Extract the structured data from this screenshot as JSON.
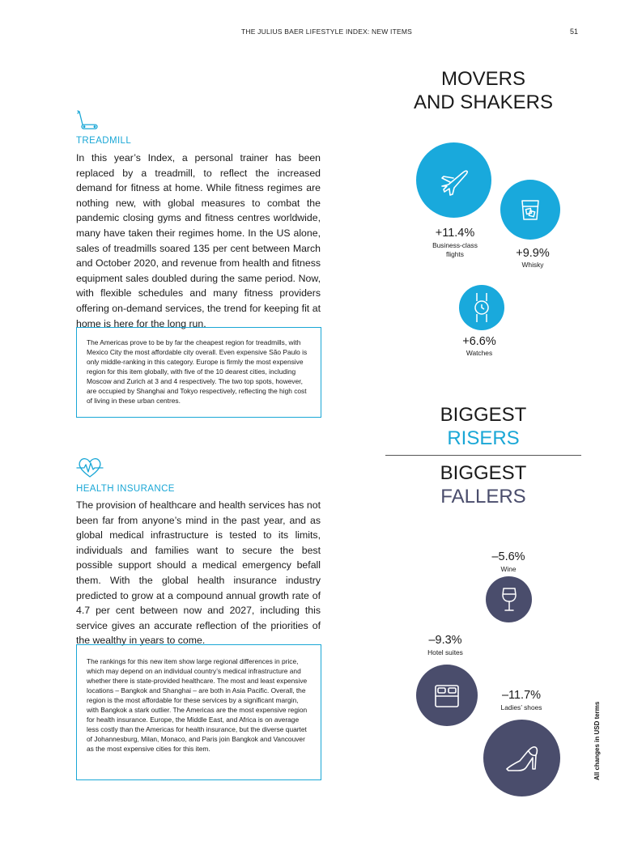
{
  "header": {
    "running_title": "THE JULIUS BAER LIFESTYLE INDEX: NEW ITEMS",
    "page_number": "51"
  },
  "treadmill": {
    "icon": "treadmill-icon",
    "title": "TREADMILL",
    "body": "In this year’s Index, a personal trainer has been replaced by a treadmill, to reflect the increased demand for fitness at home. While fitness regimes are nothing new, with global measures to combat the pandemic closing gyms and fitness centres worldwide, many have taken their regimes home. In the US alone, sales of treadmills soared 135 per cent between March and October 2020, and revenue from health and fitness equipment sales doubled during the same period. Now, with flexible schedules and many fitness providers offering on-demand services, the trend for keeping fit at home is here for the long run.",
    "box": "The Americas prove to be by far the cheapest region for treadmills, with Mexico City the most affordable city overall. Even expensive São Paulo is only middle-ranking in this category. Europe is firmly the most expensive region for this item globally, with five of the 10 dearest cities, including Moscow and Zurich at 3 and 4 respectively. The two top spots, however, are occupied by Shanghai and Tokyo respectively, reflecting the high cost of living in these urban centres."
  },
  "health_insurance": {
    "icon": "heartbeat-icon",
    "title": "HEALTH INSURANCE",
    "body": "The provision of healthcare and health services has not been far from anyone’s mind in the past year, and as global medical infrastructure is tested to its limits, individuals and families want to secure the best possible support should a medical emergency befall them. With the global health insurance industry predicted to grow at a compound annual growth rate of 4.7 per cent between now and 2027, including this service gives an accurate reflection of the priorities of the wealthy in years to come.",
    "box": "The rankings for this new item show large regional differences in price, which may depend on an individual country’s medical infrastructure and whether there is state-provided healthcare. The most and least expensive locations – Bangkok and Shanghai – are both in Asia Pacific. Overall, the region is the most affordable for these services by a significant margin, with Bangkok a stark outlier. The Americas are the most expensive region for health insurance. Europe, the Middle East, and Africa is on average less costly than the Americas for health insurance, but the diverse quartet of Johannesburg, Milan, Monaco, and Paris join Bangkok and Vancouver as the most expensive cities for this item."
  },
  "movers": {
    "title_line1": "MOVERS",
    "title_line2": "AND SHAKERS"
  },
  "risers": {
    "heading_line1": "BIGGEST",
    "heading_line2": "RISERS",
    "items": [
      {
        "value": "+11.4%",
        "label_line1": "Business-class",
        "label_line2": "flights",
        "icon": "airplane-icon"
      },
      {
        "value": "+9.9%",
        "label_line1": "Whisky",
        "label_line2": "",
        "icon": "whisky-glass-icon"
      },
      {
        "value": "+6.6%",
        "label_line1": "Watches",
        "label_line2": "",
        "icon": "watch-icon"
      }
    ]
  },
  "fallers": {
    "heading_line1": "BIGGEST",
    "heading_line2": "FALLERS",
    "items": [
      {
        "value": "–5.6%",
        "label": "Wine",
        "icon": "wine-glass-icon"
      },
      {
        "value": "–9.3%",
        "label": "Hotel suites",
        "icon": "bed-icon"
      },
      {
        "value": "–11.7%",
        "label": "Ladies’ shoes",
        "icon": "high-heel-icon"
      }
    ]
  },
  "footnote": "All changes in USD terms",
  "colors": {
    "accent": "#19a9dc",
    "navy": "#4a4d6c",
    "riser_text": "#1aa7d6",
    "faller_text": "#4a4d6c"
  }
}
